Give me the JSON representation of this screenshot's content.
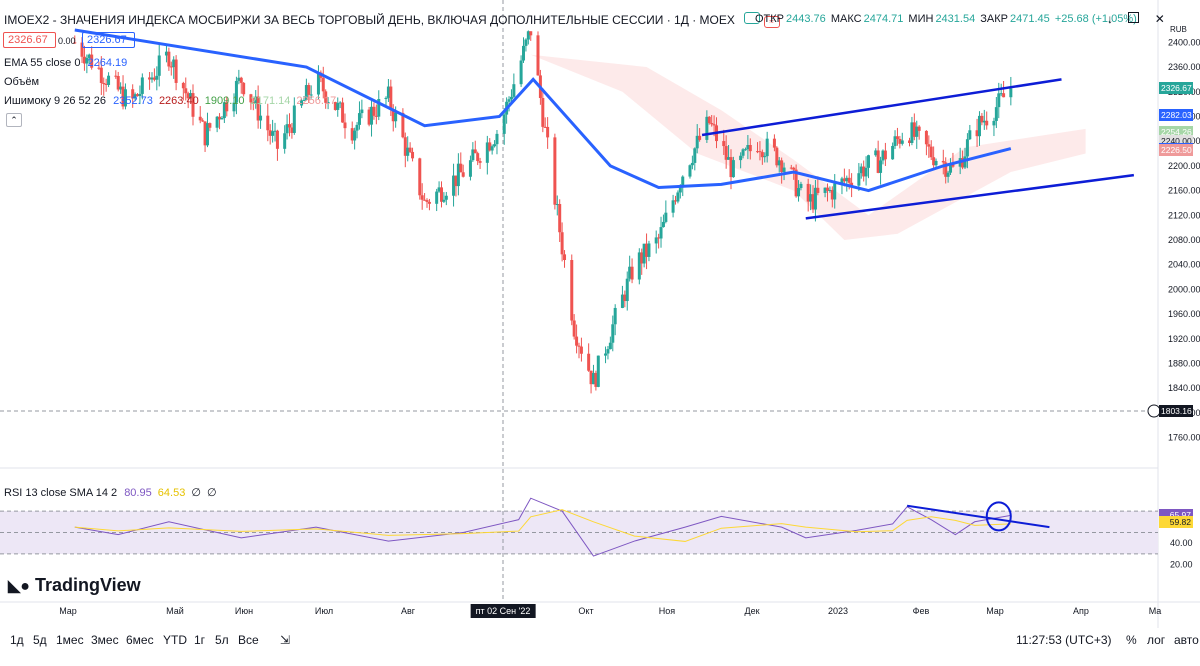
{
  "header": {
    "title": "IMOEX2 - ЗНАЧЕНИЯ ИНДЕКСА МОСБИРЖИ ЗА ВЕСЬ ТОРГОВЫЙ ДЕНЬ, ВКЛЮЧАЯ ДОПОЛНИТЕЛЬНЫЕ СЕССИИ · 1Д · MOEX",
    "open_label": "ОТКР",
    "open_value": "2443.76",
    "high_label": "МАКС",
    "high_value": "2474.71",
    "low_label": "МИН",
    "low_value": "2431.54",
    "close_label": "ЗАКР",
    "close_value": "2471.45",
    "change": "+25.68 (+1.05%)",
    "currency": "RUB"
  },
  "toolbar": {
    "sell_price": "2326.67",
    "spread": "0.00",
    "buy_price": "2326.67"
  },
  "indicators": {
    "ema_label": "EMA 55 close 0",
    "ema_value": "2264.19",
    "volume_label": "Объём",
    "ichimoku_label": "Ишимоку 9 26 52 26",
    "ichimoku_values": [
      "2352.73",
      "2263.40",
      "1909.10",
      "2171.14",
      "2256.17"
    ],
    "rsi_label": "RSI 13 close SMA 14 2",
    "rsi_values": [
      "80.95",
      "64.53",
      "∅",
      "∅"
    ]
  },
  "price_axis": [
    "2400.00",
    "2360.00",
    "2320.00",
    "2280.00",
    "2240.00",
    "2200.00",
    "2160.00",
    "2120.00",
    "2080.00",
    "2040.00",
    "2000.00",
    "1960.00",
    "1920.00",
    "1880.00",
    "1840.00",
    "1800.00",
    "1760.00"
  ],
  "rsi_axis": [
    "60.00",
    "40.00",
    "20.00"
  ],
  "price_tags": [
    {
      "value": "2326.67",
      "color": "#26a69a"
    },
    {
      "value": "2326.67",
      "color": "#26a69a"
    },
    {
      "value": "2282.03",
      "color": "#2962ff"
    },
    {
      "value": "2254.26",
      "color": "#a5d6a7"
    },
    {
      "value": "2240.00",
      "color": "#e0e0e0"
    },
    {
      "value": "2227.86",
      "color": "#2962ff"
    },
    {
      "value": "2226.50",
      "color": "#d32f2f"
    },
    {
      "value": "2226.50",
      "color": "#ef9a9a"
    },
    {
      "value": "1803.16",
      "color": "#131722"
    }
  ],
  "rsi_tags": [
    {
      "value": "65.97",
      "color": "#7e57c2"
    },
    {
      "value": "59.82",
      "color": "#fdd835"
    }
  ],
  "time_axis": [
    "Мар",
    "Май",
    "Июн",
    "Июл",
    "Авг",
    "Окт",
    "Ноя",
    "Дек",
    "2023",
    "Фев",
    "Мар",
    "Апр",
    "Ма"
  ],
  "cursor_date": "пт 02 Сен '22",
  "logo_text": "TradingView",
  "timeframes": [
    "1д",
    "5д",
    "1мес",
    "3мес",
    "6мес",
    "YTD",
    "1г",
    "5л",
    "Все"
  ],
  "clock": "11:27:53 (UTC+3)",
  "scale_buttons": [
    "%",
    "лог",
    "авто"
  ],
  "colors": {
    "up": "#26a69a",
    "down": "#ef5350",
    "ema": "#2962ff",
    "rsi": "#7e57c2",
    "rsi_sma": "#fdd835",
    "trend": "#0d1dd6"
  },
  "chart_data": {
    "type": "candlestick",
    "title": "IMOEX2 - ЗНАЧЕНИЯ ИНДЕКСА МОСБИРЖИ ЗА ВЕСЬ ТОРГОВЫЙ ДЕНЬ, ВКЛЮЧАЯ ДОПОЛНИТЕЛЬНЫЕ СЕССИИ · 1Д · MOEX",
    "ylim": [
      1740,
      2420
    ],
    "close_path": [
      [
        "2022-02-25",
        2400
      ],
      [
        "2022-03-20",
        2300
      ],
      [
        "2022-04-05",
        2380
      ],
      [
        "2022-04-20",
        2250
      ],
      [
        "2022-05-05",
        2340
      ],
      [
        "2022-05-20",
        2230
      ],
      [
        "2022-06-05",
        2340
      ],
      [
        "2022-06-20",
        2260
      ],
      [
        "2022-07-05",
        2310
      ],
      [
        "2022-07-20",
        2140
      ],
      [
        "2022-08-05",
        2190
      ],
      [
        "2022-08-20",
        2260
      ],
      [
        "2022-09-02",
        2420
      ],
      [
        "2022-09-10",
        2200
      ],
      [
        "2022-09-20",
        1940
      ],
      [
        "2022-09-28",
        1850
      ],
      [
        "2022-10-05",
        1930
      ],
      [
        "2022-10-15",
        2040
      ],
      [
        "2022-10-25",
        2080
      ],
      [
        "2022-11-05",
        2200
      ],
      [
        "2022-11-15",
        2270
      ],
      [
        "2022-11-25",
        2190
      ],
      [
        "2022-12-05",
        2240
      ],
      [
        "2022-12-15",
        2210
      ],
      [
        "2022-12-25",
        2140
      ],
      [
        "2023-01-05",
        2160
      ],
      [
        "2023-01-15",
        2190
      ],
      [
        "2023-01-25",
        2210
      ],
      [
        "2023-02-05",
        2260
      ],
      [
        "2023-02-15",
        2220
      ],
      [
        "2023-02-25",
        2190
      ],
      [
        "2023-03-05",
        2260
      ],
      [
        "2023-03-15",
        2300
      ],
      [
        "2023-03-20",
        2327
      ]
    ],
    "ema55_path": [
      [
        "2022-02-25",
        2420
      ],
      [
        "2022-06-01",
        2360
      ],
      [
        "2022-07-20",
        2265
      ],
      [
        "2022-08-20",
        2280
      ],
      [
        "2022-09-03",
        2340
      ],
      [
        "2022-10-05",
        2200
      ],
      [
        "2022-10-25",
        2165
      ],
      [
        "2022-11-20",
        2170
      ],
      [
        "2022-12-20",
        2190
      ],
      [
        "2023-01-20",
        2160
      ],
      [
        "2023-02-20",
        2200
      ],
      [
        "2023-03-20",
        2228
      ]
    ],
    "trendlines": [
      {
        "from": [
          "2022-11-12",
          2250
        ],
        "to": [
          "2023-04-10",
          2340
        ]
      },
      {
        "from": [
          "2022-12-25",
          2115
        ],
        "to": [
          "2023-05-10",
          2185
        ]
      }
    ],
    "rsi_path": [
      [
        "2022-02-25",
        55
      ],
      [
        "2022-03-15",
        48
      ],
      [
        "2022-04-05",
        60
      ],
      [
        "2022-05-05",
        45
      ],
      [
        "2022-06-05",
        55
      ],
      [
        "2022-07-05",
        42
      ],
      [
        "2022-08-05",
        50
      ],
      [
        "2022-08-28",
        62
      ],
      [
        "2022-09-02",
        82
      ],
      [
        "2022-09-15",
        70
      ],
      [
        "2022-09-28",
        28
      ],
      [
        "2022-10-15",
        42
      ],
      [
        "2022-11-05",
        55
      ],
      [
        "2022-11-20",
        65
      ],
      [
        "2022-12-15",
        55
      ],
      [
        "2022-12-25",
        45
      ],
      [
        "2023-01-15",
        52
      ],
      [
        "2023-01-30",
        58
      ],
      [
        "2023-02-05",
        74
      ],
      [
        "2023-02-15",
        62
      ],
      [
        "2023-02-25",
        48
      ],
      [
        "2023-03-05",
        60
      ],
      [
        "2023-03-20",
        66
      ]
    ],
    "rsi_trendline": {
      "from": [
        "2023-02-05",
        75
      ],
      "to": [
        "2023-04-05",
        55
      ]
    },
    "rsi_levels": [
      70,
      50,
      30
    ]
  }
}
